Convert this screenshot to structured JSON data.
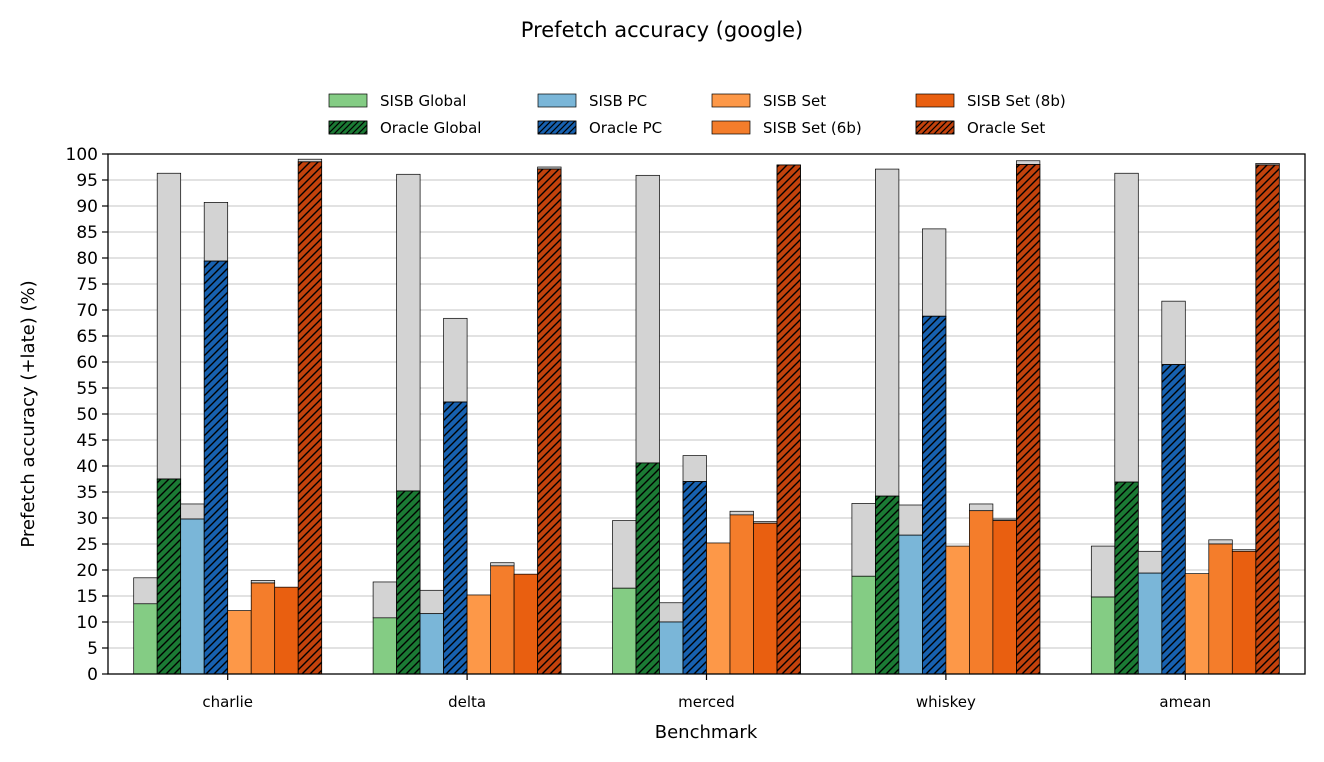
{
  "chart_data": {
    "type": "bar",
    "title": "Prefetch accuracy (google)",
    "xlabel": "Benchmark",
    "ylabel": "Prefetch accuracy (+late) (%)",
    "ylim": [
      0,
      100
    ],
    "yticks": [
      0,
      5,
      10,
      15,
      20,
      25,
      30,
      35,
      40,
      45,
      50,
      55,
      60,
      65,
      70,
      75,
      80,
      85,
      90,
      95,
      100
    ],
    "grid": "horizontal",
    "legend_position": "top-center",
    "stacked_component": "late (gray segment on top of each bar)",
    "late_color": "#d3d3d3",
    "categories": [
      "charlie",
      "delta",
      "merced",
      "whiskey",
      "amean"
    ],
    "series": [
      {
        "name": "SISB Global",
        "color": "#84cc84",
        "hatch": false,
        "values": [
          13.5,
          10.8,
          16.5,
          18.8,
          14.8
        ],
        "totals": [
          18.5,
          17.7,
          29.5,
          32.8,
          24.6
        ]
      },
      {
        "name": "Oracle Global",
        "color": "#1b7a34",
        "hatch": true,
        "values": [
          37.5,
          35.2,
          40.6,
          34.2,
          36.9
        ],
        "totals": [
          37.5,
          35.2,
          40.6,
          34.2,
          36.9
        ],
        "late_totals": [
          96.3,
          96.1,
          95.9,
          97.1,
          96.3
        ]
      },
      {
        "name": "SISB PC",
        "color": "#7ab6d8",
        "hatch": false,
        "values": [
          29.8,
          11.6,
          10.0,
          26.7,
          19.4
        ],
        "totals": [
          32.7,
          16.1,
          13.7,
          32.5,
          23.6
        ]
      },
      {
        "name": "Oracle PC",
        "color": "#1761b0",
        "hatch": true,
        "values": [
          79.4,
          52.3,
          37.0,
          68.8,
          59.5
        ],
        "totals": [
          90.7,
          68.4,
          42.0,
          85.6,
          71.7
        ]
      },
      {
        "name": "SISB Set",
        "color": "#fd9848",
        "hatch": false,
        "values": [
          12.2,
          15.2,
          25.2,
          24.6,
          19.3
        ],
        "totals": [
          12.2,
          15.2,
          25.2,
          24.6,
          19.3
        ]
      },
      {
        "name": "SISB Set (6b)",
        "color": "#f47d2b",
        "hatch": false,
        "values": [
          17.5,
          20.8,
          30.6,
          31.4,
          25.0
        ],
        "totals": [
          18.0,
          21.4,
          31.3,
          32.7,
          25.8
        ]
      },
      {
        "name": "SISB Set (8b)",
        "color": "#e95f10",
        "hatch": false,
        "values": [
          16.7,
          19.2,
          29.0,
          29.5,
          23.6
        ],
        "totals": [
          16.7,
          19.2,
          29.3,
          29.8,
          23.9
        ]
      },
      {
        "name": "Oracle Set",
        "color": "#c3420c",
        "hatch": true,
        "values": [
          98.5,
          97.1,
          97.9,
          98.0,
          97.9
        ],
        "totals": [
          99.0,
          97.5,
          97.9,
          98.7,
          98.2
        ]
      }
    ]
  }
}
